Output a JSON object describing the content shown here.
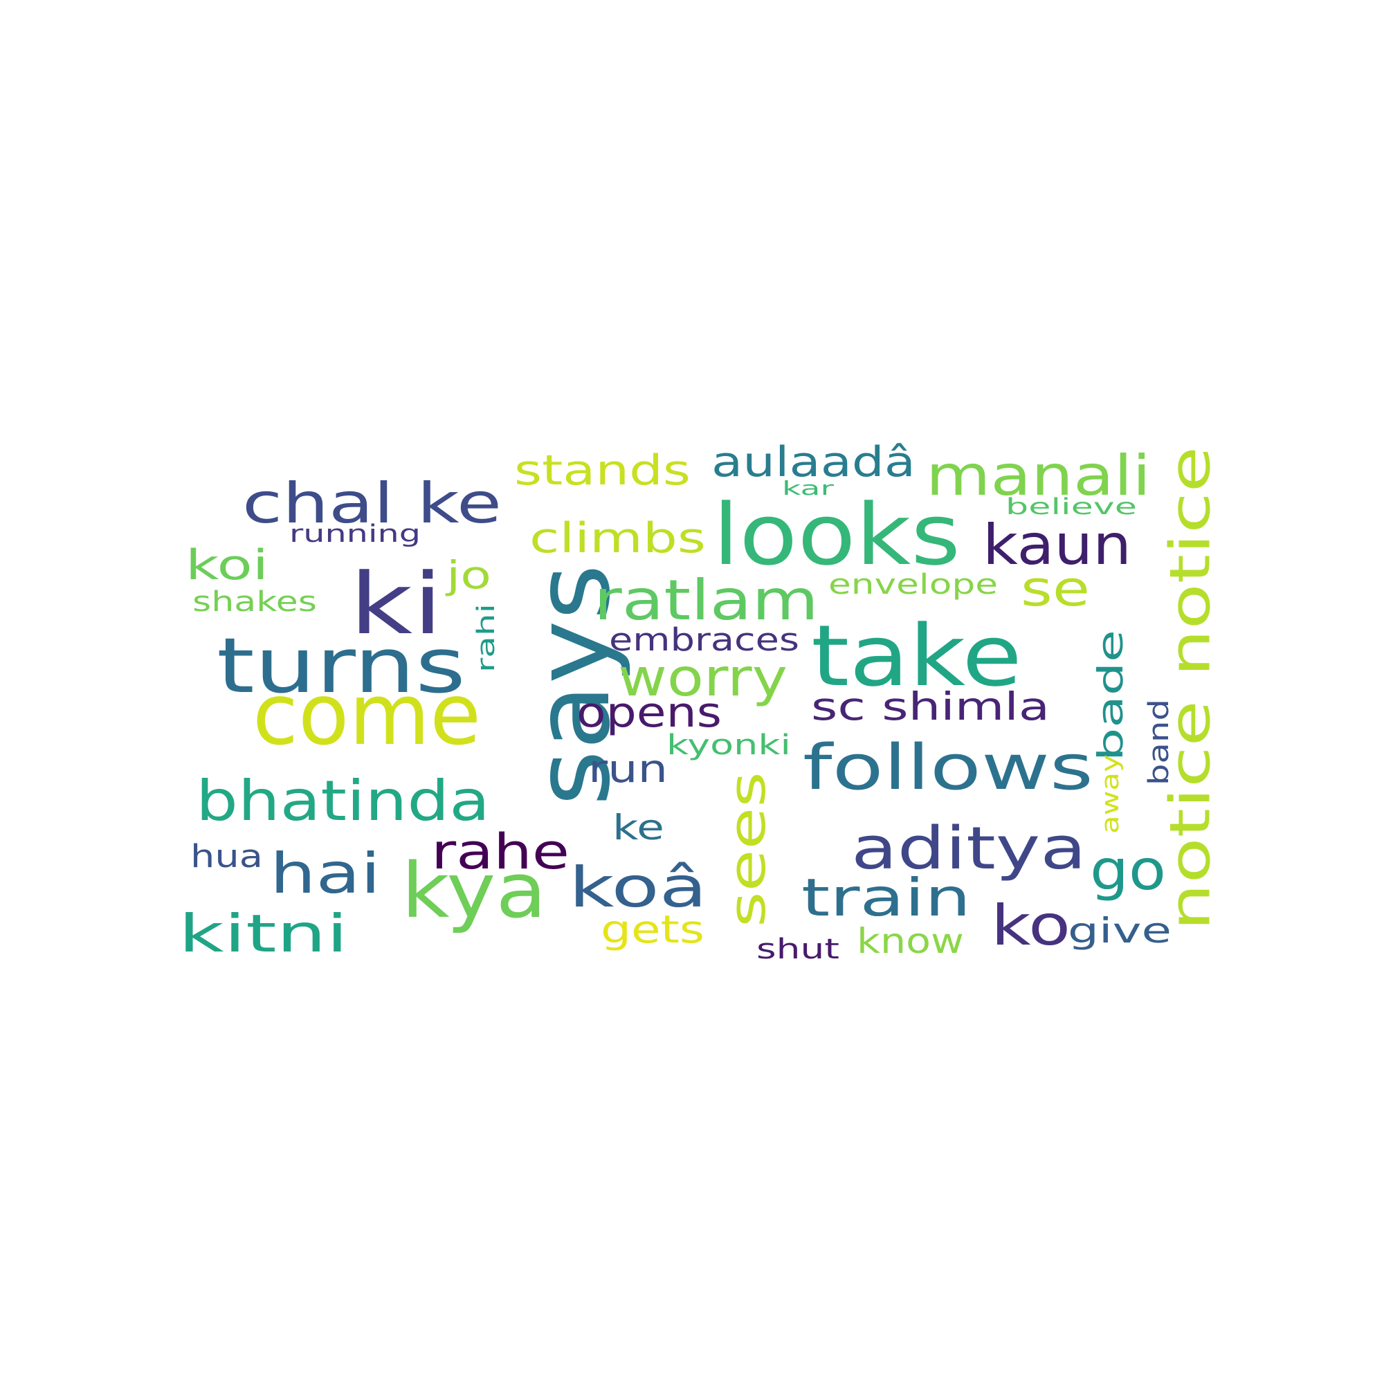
{
  "words": [
    {
      "text": "says",
      "color": "#2a788e"
    },
    {
      "text": "looks",
      "color": "#35b779"
    },
    {
      "text": "come",
      "color": "#d0e11c"
    },
    {
      "text": "take",
      "color": "#21a685"
    },
    {
      "text": "ki",
      "color": "#433e85"
    },
    {
      "text": "turns",
      "color": "#2d6e8e"
    },
    {
      "text": "kya",
      "color": "#6ece58"
    },
    {
      "text": "notice notice",
      "color": "#b5de2b"
    },
    {
      "text": "follows",
      "color": "#2c728e"
    },
    {
      "text": "chal ke",
      "color": "#3e4c8a"
    },
    {
      "text": "bhatinda",
      "color": "#22a884"
    },
    {
      "text": "aditya",
      "color": "#3f4788"
    },
    {
      "text": "manali",
      "color": "#7fd34e"
    },
    {
      "text": "ratlam",
      "color": "#5ec962"
    },
    {
      "text": "kaun",
      "color": "#3e1f6b"
    },
    {
      "text": "koâ",
      "color": "#34618d"
    },
    {
      "text": "hai",
      "color": "#31668e"
    },
    {
      "text": "kitni",
      "color": "#20a486"
    },
    {
      "text": "sees",
      "color": "#c2df23"
    },
    {
      "text": "train",
      "color": "#2e6f8e"
    },
    {
      "text": "go",
      "color": "#1f988b"
    },
    {
      "text": "worry",
      "color": "#84d44b"
    },
    {
      "text": "rahe",
      "color": "#440154"
    },
    {
      "text": "ko",
      "color": "#46327e"
    },
    {
      "text": "stands",
      "color": "#c8e020"
    },
    {
      "text": "climbs",
      "color": "#bddf26"
    },
    {
      "text": "aulaadâ",
      "color": "#287d8e"
    },
    {
      "text": "se",
      "color": "#b8de29"
    },
    {
      "text": "bade",
      "color": "#20928c"
    },
    {
      "text": "opens",
      "color": "#481a6c"
    },
    {
      "text": "sc shimla",
      "color": "#482475"
    },
    {
      "text": "koi",
      "color": "#6ccd5a"
    },
    {
      "text": "jo",
      "color": "#a2da37"
    },
    {
      "text": "embraces",
      "color": "#46337e"
    },
    {
      "text": "run",
      "color": "#3b528b"
    },
    {
      "text": "gets",
      "color": "#e5e419"
    },
    {
      "text": "know",
      "color": "#8bd646"
    },
    {
      "text": "give",
      "color": "#355f8d"
    },
    {
      "text": "ke",
      "color": "#2c718e"
    },
    {
      "text": "hua",
      "color": "#3a538b"
    },
    {
      "text": "shakes",
      "color": "#75d054"
    },
    {
      "text": "envelope",
      "color": "#86d549"
    },
    {
      "text": "kyonki",
      "color": "#44bf70"
    },
    {
      "text": "running",
      "color": "#443a83"
    },
    {
      "text": "rahi",
      "color": "#1e9c89"
    },
    {
      "text": "band",
      "color": "#3b528b"
    },
    {
      "text": "away",
      "color": "#d2e21b"
    },
    {
      "text": "shut",
      "color": "#481b6d"
    },
    {
      "text": "believe",
      "color": "#54c568"
    },
    {
      "text": "kar",
      "color": "#3dbc74"
    }
  ]
}
